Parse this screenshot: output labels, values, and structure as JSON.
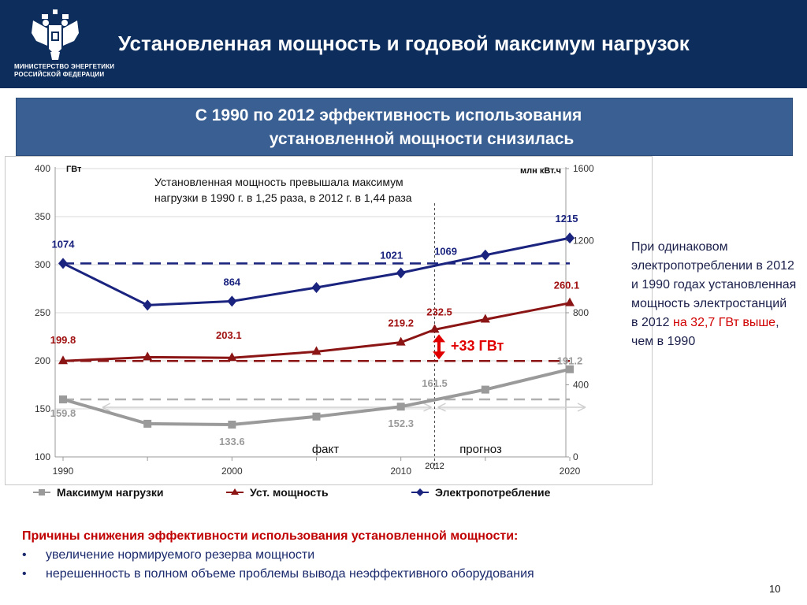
{
  "header": {
    "ministry_line1": "МИНИСТЕРСТВО ЭНЕРГЕТИКИ",
    "ministry_line2": "РОССИЙСКОЙ ФЕДЕРАЦИИ",
    "title": "Установленная мощность и годовой максимум нагрузок",
    "emblem_icon": "double-headed-eagle-icon"
  },
  "banner": {
    "line1": "С 1990 по 2012 эффективность использования",
    "line2": "установленной мощности снизилась"
  },
  "annotation": "Установленная мощность превышала максимум нагрузки в 1990 г. в 1,25 раза, в 2012 г. в 1,44 раза",
  "side_note": {
    "part1": "При одинаковом электропотреблении в 2012 и 1990 годах установленная мощность электростанций в 2012 ",
    "highlight": "на 32,7 ГВт выше",
    "part2": ", чем в 1990"
  },
  "reasons": {
    "title": "Причины снижения эффективности использования установленной мощности:",
    "items": [
      "увеличение нормируемого резерва мощности",
      "нерешенность в полном объеме проблемы вывода неэффективного оборудования"
    ]
  },
  "page_number": "10",
  "chart_data": {
    "type": "line",
    "x_ticks": [
      "1990",
      "2000",
      "2010",
      "2020"
    ],
    "x_range": [
      1990,
      2020
    ],
    "left_axis": {
      "label": "ГВт",
      "range": [
        100,
        400
      ],
      "ticks": [
        "100",
        "150",
        "200",
        "250",
        "300",
        "350",
        "400"
      ]
    },
    "right_axis": {
      "label": "млн кВт.ч",
      "range": [
        0,
        1600
      ],
      "ticks": [
        "0",
        "400",
        "800",
        "1200",
        "1600"
      ]
    },
    "marker_2012": "2012",
    "region_labels": [
      "факт",
      "прогноз"
    ],
    "gap_label": "+33 ГВт",
    "series": [
      {
        "name": "Максимум нагрузки",
        "axis": "left",
        "color": "#9a9a9a",
        "marker": "square",
        "points": [
          [
            1990,
            159.8
          ],
          [
            1995,
            134.5
          ],
          [
            2000,
            133.6
          ],
          [
            2005,
            142
          ],
          [
            2010,
            152.3
          ],
          [
            2015,
            170
          ],
          [
            2020,
            191.2
          ]
        ],
        "labels": [
          {
            "x": 1990,
            "y": 159.8,
            "text": "159.8"
          },
          {
            "x": 2000,
            "y": 133.6,
            "text": "133.6"
          },
          {
            "x": 2010,
            "y": 152.3,
            "text": "152.3"
          },
          {
            "x": 2012,
            "y": 161.5,
            "text": "161.5"
          },
          {
            "x": 2020,
            "y": 191.2,
            "text": "191.2"
          }
        ]
      },
      {
        "name": "Уст. мощность",
        "axis": "left",
        "color": "#8b1414",
        "marker": "triangle",
        "points": [
          [
            1990,
            199.8
          ],
          [
            1995,
            203.8
          ],
          [
            2000,
            203.1
          ],
          [
            2005,
            209.5
          ],
          [
            2010,
            219.2
          ],
          [
            2012,
            232.5
          ],
          [
            2015,
            243
          ],
          [
            2020,
            260.1
          ]
        ],
        "labels": [
          {
            "x": 1990,
            "y": 199.8,
            "text": "199.8"
          },
          {
            "x": 2000,
            "y": 203.1,
            "text": "203.1"
          },
          {
            "x": 2010,
            "y": 219.2,
            "text": "219.2"
          },
          {
            "x": 2012,
            "y": 232.5,
            "text": "232.5"
          },
          {
            "x": 2020,
            "y": 260.1,
            "text": "260.1"
          }
        ]
      },
      {
        "name": "Электропотребление",
        "axis": "right",
        "color": "#1a237e",
        "marker": "diamond",
        "points": [
          [
            1990,
            1074
          ],
          [
            1995,
            842
          ],
          [
            2000,
            864
          ],
          [
            2005,
            940
          ],
          [
            2010,
            1021
          ],
          [
            2015,
            1120
          ],
          [
            2020,
            1215
          ]
        ],
        "labels": [
          {
            "x": 1990,
            "y": 1074,
            "text": "1074"
          },
          {
            "x": 2000,
            "y": 864,
            "text": "864"
          },
          {
            "x": 2010,
            "y": 1021,
            "text": "1021"
          },
          {
            "x": 2012,
            "y": 1069,
            "text": "1069"
          },
          {
            "x": 2020,
            "y": 1215,
            "text": "1215"
          }
        ]
      }
    ],
    "reference_lines": [
      {
        "series": "Электропотребление",
        "axis": "right",
        "value": 1074,
        "color": "#1a237e"
      },
      {
        "series": "Уст. мощность",
        "axis": "left",
        "value": 199.8,
        "color": "#8b1414"
      },
      {
        "series": "Максимум нагрузки",
        "axis": "left",
        "value": 159.8,
        "color": "#b0b0b0"
      }
    ]
  }
}
